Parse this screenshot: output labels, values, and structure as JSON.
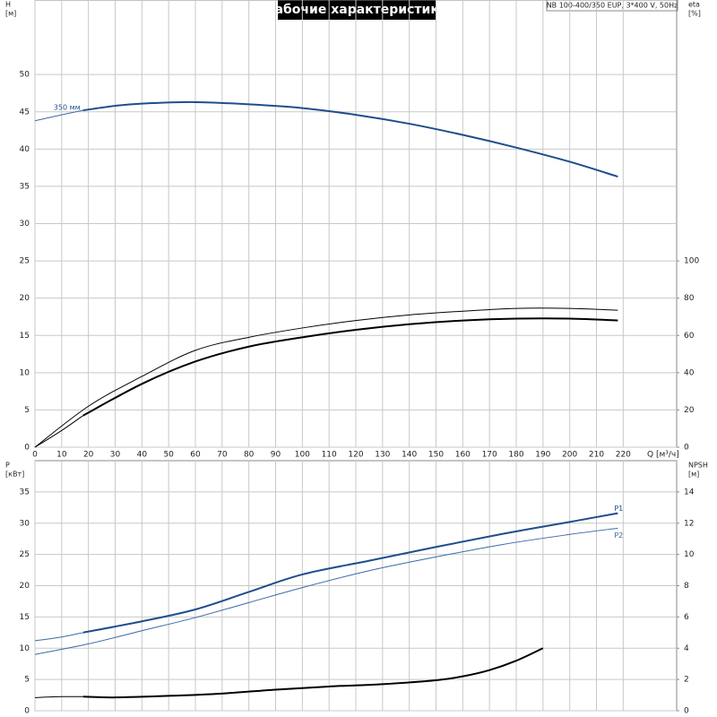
{
  "header": {
    "title": "Рабочие характеристики",
    "model": "NB 100-400/350 EUP, 3*400 V, 50Hz"
  },
  "chart_data": [
    {
      "type": "line",
      "ylabel": [
        "H",
        "[м]"
      ],
      "y2label": [
        "eta",
        "[%]"
      ],
      "xlabel": "Q [м³/ч]",
      "xlim": [
        0,
        240
      ],
      "xticks": [
        0,
        10,
        20,
        30,
        40,
        50,
        60,
        70,
        80,
        90,
        100,
        110,
        120,
        130,
        140,
        150,
        160,
        170,
        180,
        190,
        200,
        210,
        220
      ],
      "ylim": [
        0,
        60
      ],
      "yticks": [
        0,
        5,
        10,
        15,
        20,
        25,
        30,
        35,
        40,
        45,
        50
      ],
      "y2lim": [
        0,
        240
      ],
      "y2ticks": [
        0,
        20,
        40,
        60,
        80,
        100
      ],
      "grid": true,
      "series": [
        {
          "color": "#3c6aa6",
          "line_width": 1,
          "x": [
            0,
            10,
            18
          ],
          "values": [
            43.8,
            44.6,
            45.2
          ]
        },
        {
          "name": "350 мм",
          "color": "#1f4e8c",
          "line_width": 2,
          "x": [
            18,
            30,
            40,
            60,
            80,
            100,
            120,
            140,
            160,
            180,
            200,
            218
          ],
          "values": [
            45.2,
            45.8,
            46.1,
            46.3,
            46.0,
            45.5,
            44.6,
            43.4,
            41.9,
            40.2,
            38.3,
            36.3
          ]
        },
        {
          "color": "#000000",
          "line_width": 1,
          "axis": "y2",
          "x": [
            0,
            20,
            40,
            60,
            80,
            100,
            120,
            140,
            160,
            180,
            200,
            218
          ],
          "values": [
            0,
            22,
            38,
            52,
            59,
            64,
            68,
            71,
            73,
            74.5,
            74.5,
            73.5
          ]
        },
        {
          "color": "#000000",
          "line_width": 1,
          "axis": "y2",
          "x": [
            0,
            10,
            18
          ],
          "values": [
            0,
            9,
            17
          ]
        },
        {
          "color": "#000000",
          "line_width": 2,
          "axis": "y2",
          "x": [
            18,
            40,
            60,
            80,
            100,
            120,
            140,
            160,
            180,
            200,
            218
          ],
          "values": [
            17,
            34,
            46,
            54,
            59,
            63,
            66,
            68,
            69,
            69,
            68
          ]
        }
      ]
    },
    {
      "type": "line",
      "ylabel": [
        "P",
        "[кВт]"
      ],
      "y2label": [
        "NPSH",
        "[м]"
      ],
      "xlim": [
        0,
        240
      ],
      "xticks": [
        0,
        10,
        20,
        30,
        40,
        50,
        60,
        70,
        80,
        90,
        100,
        110,
        120,
        130,
        140,
        150,
        160,
        170,
        180,
        190,
        200,
        210,
        220
      ],
      "ylim": [
        0,
        40
      ],
      "yticks": [
        0,
        5,
        10,
        15,
        20,
        25,
        30,
        35
      ],
      "y2lim": [
        0,
        16
      ],
      "y2ticks": [
        0,
        2,
        4,
        6,
        8,
        10,
        12,
        14
      ],
      "grid": true,
      "series": [
        {
          "color": "#3c6aa6",
          "line_width": 1,
          "x": [
            0,
            10,
            18
          ],
          "values": [
            11.2,
            11.8,
            12.5
          ]
        },
        {
          "name": "P1",
          "color": "#1f4e8c",
          "line_width": 2,
          "x": [
            18,
            40,
            60,
            80,
            100,
            125,
            150,
            175,
            200,
            218
          ],
          "values": [
            12.5,
            14.3,
            16.2,
            19.0,
            21.8,
            24.0,
            26.2,
            28.3,
            30.2,
            31.6
          ]
        },
        {
          "name": "P2",
          "color": "#3c6aa6",
          "line_width": 1,
          "x": [
            0,
            20,
            40,
            60,
            80,
            100,
            125,
            150,
            175,
            200,
            218
          ],
          "values": [
            9.0,
            10.7,
            12.8,
            14.9,
            17.3,
            19.7,
            22.4,
            24.6,
            26.6,
            28.2,
            29.2
          ]
        },
        {
          "color": "#000000",
          "line_width": 1,
          "axis": "y2",
          "x": [
            0,
            10,
            18
          ],
          "values": [
            0.84,
            0.9,
            0.9
          ]
        },
        {
          "color": "#000000",
          "line_width": 2,
          "axis": "y2",
          "x": [
            18,
            30,
            50,
            70,
            90,
            110,
            130,
            150,
            160,
            170,
            180,
            190
          ],
          "values": [
            0.9,
            0.85,
            0.95,
            1.1,
            1.35,
            1.55,
            1.7,
            1.95,
            2.2,
            2.6,
            3.2,
            4.0
          ]
        }
      ]
    }
  ]
}
